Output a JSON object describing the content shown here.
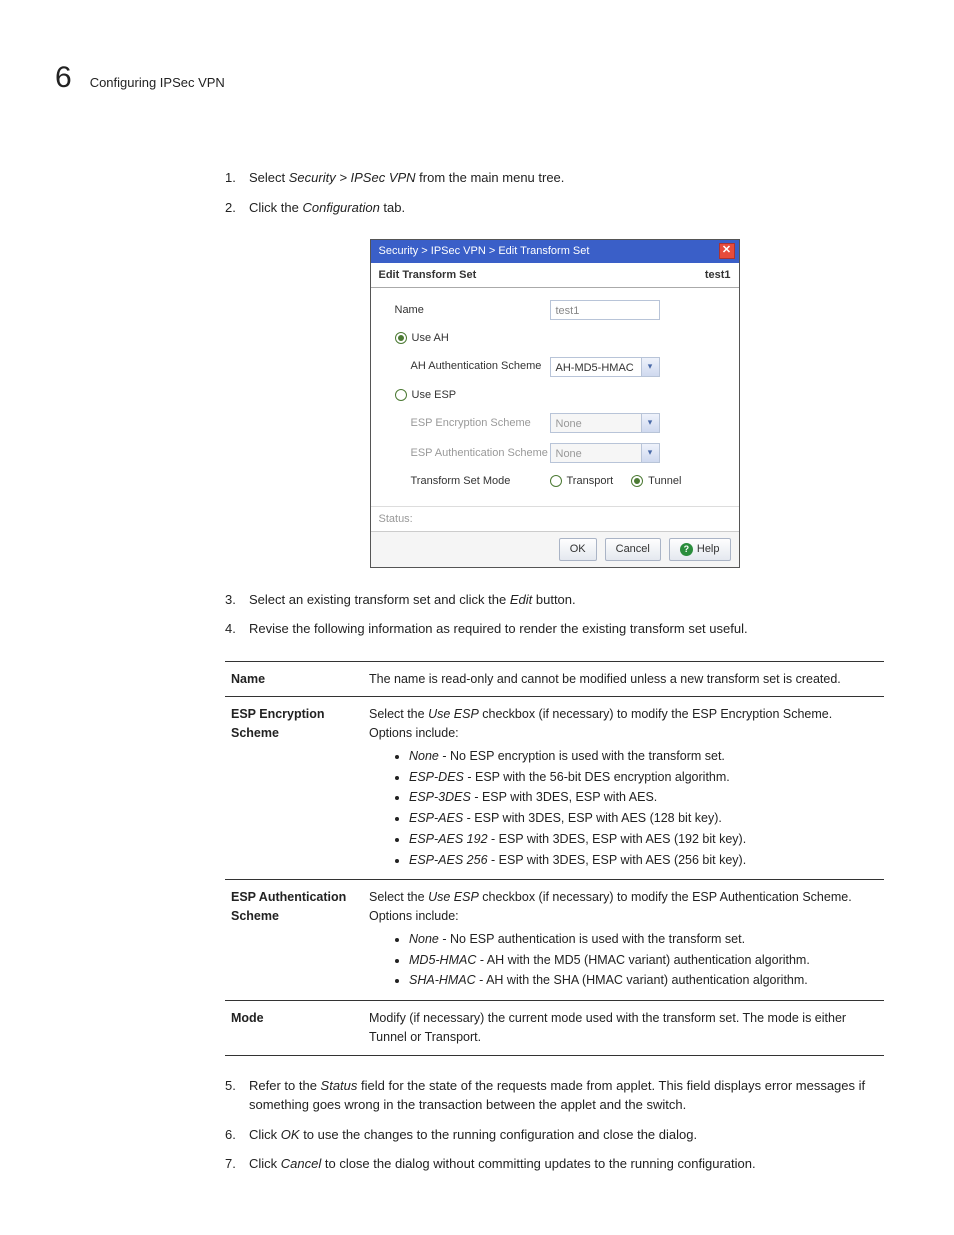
{
  "header": {
    "page_number": "6",
    "title": "Configuring IPSec VPN"
  },
  "steps_a": [
    {
      "num": "1.",
      "prefix": "Select ",
      "italic": "Security > IPSec VPN",
      "suffix": " from the main menu tree."
    },
    {
      "num": "2.",
      "prefix": "Click the ",
      "italic": "Configuration",
      "suffix": " tab."
    }
  ],
  "dialog": {
    "breadcrumb": "Security > IPSec VPN > Edit Transform Set",
    "close_glyph": "✕",
    "sub_left": "Edit Transform Set",
    "sub_right": "test1",
    "name_label": "Name",
    "name_value": "test1",
    "use_ah_label": "Use AH",
    "ah_scheme_label": "AH Authentication Scheme",
    "ah_scheme_value": "AH-MD5-HMAC",
    "use_esp_label": "Use ESP",
    "esp_enc_label": "ESP Encryption Scheme",
    "esp_enc_value": "None",
    "esp_auth_label": "ESP Authentication Scheme",
    "esp_auth_value": "None",
    "mode_label": "Transform Set Mode",
    "transport_label": "Transport",
    "tunnel_label": "Tunnel",
    "status_label": "Status:",
    "ok": "OK",
    "cancel": "Cancel",
    "help": "Help",
    "dropdown_glyph": "▾",
    "colors": {
      "titlebar_bg": "#3a5fc8",
      "close_bg": "#e74c3c",
      "radio_green": "#4c7a34",
      "help_bg": "#2a8d3c"
    }
  },
  "steps_b": [
    {
      "num": "3.",
      "prefix": "Select an existing transform set and click the ",
      "italic": "Edit",
      "suffix": " button."
    },
    {
      "num": "4.",
      "prefix": "Revise the following information as required to render the existing transform set useful.",
      "italic": "",
      "suffix": ""
    }
  ],
  "table": {
    "rows": [
      {
        "k": "Name",
        "text": "The name is read-only and cannot be modified unless a new transform set is created."
      },
      {
        "k": "ESP Encryption Scheme",
        "lead_pre": "Select the ",
        "lead_it": "Use ESP",
        "lead_post": " checkbox (if necessary) to modify the ESP Encryption Scheme. Options include:",
        "items": [
          {
            "it": "None",
            "rest": " - No ESP encryption is used with the transform set."
          },
          {
            "it": "ESP-DES",
            "rest": " - ESP with the 56-bit DES encryption algorithm."
          },
          {
            "it": "ESP-3DES",
            "rest": " - ESP with 3DES, ESP with AES."
          },
          {
            "it": "ESP-AES",
            "rest": " - ESP with 3DES, ESP with AES (128 bit key)."
          },
          {
            "it": "ESP-AES 192",
            "rest": " - ESP with 3DES, ESP with AES (192 bit key)."
          },
          {
            "it": "ESP-AES 256",
            "rest": " - ESP with 3DES, ESP with AES (256 bit key)."
          }
        ]
      },
      {
        "k": "ESP Authentication Scheme",
        "lead_pre": "Select the ",
        "lead_it": "Use ESP",
        "lead_post": " checkbox (if necessary) to modify the ESP Authentication Scheme. Options include:",
        "items": [
          {
            "it": "None",
            "rest": " - No ESP authentication is used with the transform set."
          },
          {
            "it": "MD5-HMAC",
            "rest": " - AH with the MD5 (HMAC variant) authentication algorithm."
          },
          {
            "it": "SHA-HMAC",
            "rest": " - AH with the SHA (HMAC variant) authentication algorithm."
          }
        ]
      },
      {
        "k": "Mode",
        "text": "Modify (if necessary) the current mode used with the transform set. The mode is either Tunnel or Transport."
      }
    ]
  },
  "steps_c": [
    {
      "num": "5.",
      "prefix": "Refer to the ",
      "italic": "Status",
      "suffix": " field for the state of the requests made from applet. This field displays error messages if something goes wrong in the transaction between the applet and the switch."
    },
    {
      "num": "6.",
      "prefix": "Click ",
      "italic": "OK",
      "suffix": " to use the changes to the running configuration and close the dialog."
    },
    {
      "num": "7.",
      "prefix": "Click ",
      "italic": "Cancel",
      "suffix": " to close the dialog without committing updates to the running configuration."
    }
  ]
}
